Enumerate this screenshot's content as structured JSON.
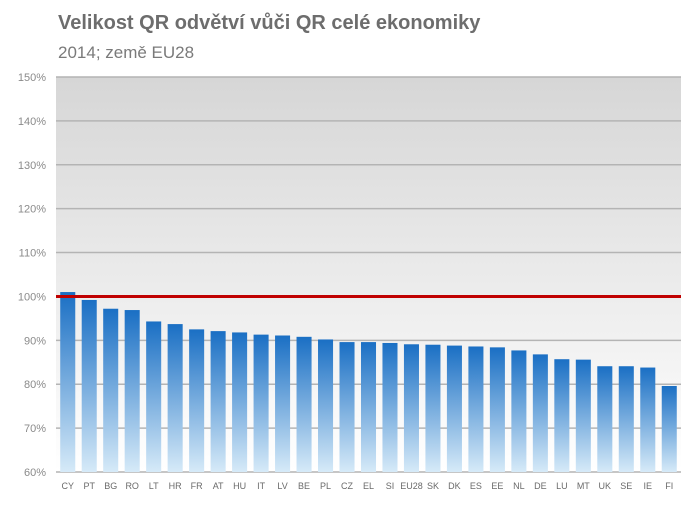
{
  "chart_data": {
    "type": "bar",
    "title": "Velikost QR odvětví vůči QR celé ekonomiky",
    "subtitle": "2014; země EU28",
    "xlabel": "",
    "ylabel": "",
    "ylim": [
      60,
      150
    ],
    "yticks": [
      "60%",
      "70%",
      "80%",
      "90%",
      "100%",
      "110%",
      "120%",
      "130%",
      "140%",
      "150%"
    ],
    "ytick_values": [
      60,
      70,
      80,
      90,
      100,
      110,
      120,
      130,
      140,
      150
    ],
    "grid": true,
    "reference_line": {
      "value": 100,
      "color": "#c00000"
    },
    "bar_color_top": "#1a6fc4",
    "bar_color_bottom": "#d6eaf8",
    "categories": [
      "CY",
      "PT",
      "BG",
      "RO",
      "LT",
      "HR",
      "FR",
      "AT",
      "HU",
      "IT",
      "LV",
      "BE",
      "PL",
      "CZ",
      "EL",
      "SI",
      "EU28",
      "SK",
      "DK",
      "ES",
      "EE",
      "NL",
      "DE",
      "LU",
      "MT",
      "UK",
      "SE",
      "IE",
      "FI"
    ],
    "values": [
      101.0,
      99.2,
      97.2,
      96.9,
      94.3,
      93.7,
      92.5,
      92.1,
      91.8,
      91.3,
      91.1,
      90.8,
      90.2,
      89.6,
      89.6,
      89.4,
      89.1,
      89.0,
      88.8,
      88.6,
      88.4,
      87.7,
      86.8,
      85.7,
      85.6,
      84.1,
      84.1,
      83.8,
      79.6
    ]
  }
}
